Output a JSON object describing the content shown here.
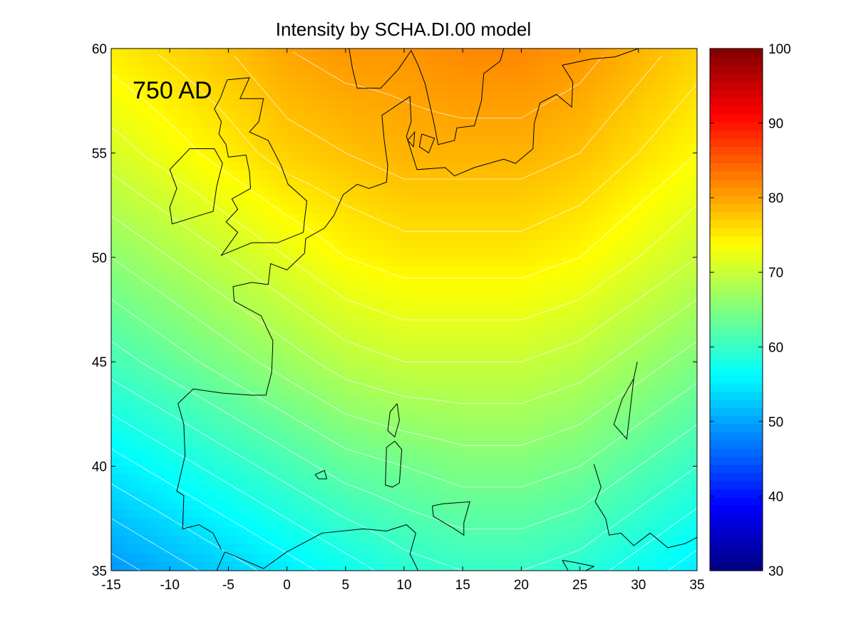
{
  "figure": {
    "title": "Intensity by SCHA.DI.00 model",
    "era_label": "750 AD"
  },
  "chart_data": {
    "type": "heatmap",
    "title": "Intensity by SCHA.DI.00 model",
    "annotation": "750 AD",
    "xlim": [
      -15,
      35
    ],
    "ylim": [
      35,
      60
    ],
    "xticks": [
      -15,
      -10,
      -5,
      0,
      5,
      10,
      15,
      20,
      25,
      30,
      35
    ],
    "yticks": [
      35,
      40,
      45,
      50,
      55,
      60
    ],
    "xtick_labels": [
      "-15",
      "-10",
      "-5",
      "0",
      "5",
      "10",
      "15",
      "20",
      "25",
      "30",
      "35"
    ],
    "ytick_labels": [
      "35",
      "40",
      "45",
      "50",
      "55",
      "60"
    ],
    "colorbar": {
      "range": [
        30,
        100
      ],
      "ticks": [
        30,
        40,
        50,
        60,
        70,
        80,
        90,
        100
      ],
      "labels": [
        "30",
        "40",
        "50",
        "60",
        "70",
        "80",
        "90",
        "100"
      ],
      "colormap": "jet"
    },
    "field_profile": {
      "lon": [
        -15,
        -5,
        0,
        5,
        10,
        15,
        20,
        25,
        30,
        35
      ],
      "lat": [
        35,
        40,
        45,
        50,
        55,
        60
      ],
      "note_values": "approximate intensity (data units) sampled on the lon/lat grid",
      "values": [
        [
          49,
          53,
          55,
          57,
          59,
          60,
          60,
          59,
          57,
          55
        ],
        [
          55,
          59,
          61,
          63,
          64,
          65,
          65,
          64,
          62,
          60
        ],
        [
          61,
          65,
          67,
          69,
          70,
          70,
          70,
          69,
          67,
          65
        ],
        [
          66,
          70,
          72,
          74,
          75,
          75,
          75,
          74,
          72,
          70
        ],
        [
          71,
          75,
          77,
          78,
          79,
          79,
          79,
          78,
          76,
          74
        ],
        [
          75,
          78,
          80,
          81,
          81,
          82,
          82,
          81,
          79,
          77
        ]
      ]
    },
    "contour_lines": true,
    "coastlines": true,
    "grid": false
  }
}
